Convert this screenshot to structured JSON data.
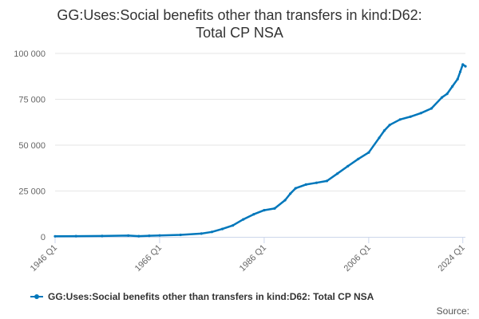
{
  "chart_data": {
    "type": "line",
    "title_lines": [
      "GG:Uses:Social benefits other than transfers in kind:D62:",
      "Total CP NSA"
    ],
    "x_tick_labels": [
      "1946 Q1",
      "1966 Q1",
      "1986 Q1",
      "2006 Q1",
      "2024 Q1"
    ],
    "x_tick_years": [
      1946,
      1966,
      1986,
      2006,
      2024
    ],
    "xlim": [
      1946,
      2024.5
    ],
    "y_tick_labels": [
      "0",
      "25 000",
      "50 000",
      "75 000",
      "100 000"
    ],
    "y_tick_values": [
      0,
      25000,
      50000,
      75000,
      100000
    ],
    "ylim": [
      0,
      100000
    ],
    "grid": true,
    "legend_position": "bottom",
    "series": [
      {
        "name": "GG:Uses:Social benefits other than transfers in kind:D62: Total CP NSA",
        "color": "#0077bb",
        "x": [
          1946,
          1950,
          1955,
          1960,
          1962,
          1964,
          1966,
          1970,
          1974,
          1976,
          1978,
          1980,
          1982,
          1984,
          1986,
          1988,
          1990,
          1991,
          1992,
          1994,
          1996,
          1998,
          2000,
          2002,
          2004,
          2006,
          2008,
          2009,
          2010,
          2012,
          2014,
          2016,
          2018,
          2020,
          2021,
          2022,
          2023,
          2023.5,
          2024,
          2024.5
        ],
        "y": [
          300,
          400,
          500,
          700,
          400,
          600,
          800,
          1100,
          1800,
          2700,
          4300,
          6200,
          9500,
          12300,
          14500,
          15500,
          20000,
          23500,
          26500,
          28500,
          29500,
          30500,
          34500,
          38500,
          42500,
          46000,
          54000,
          58000,
          61000,
          64000,
          65500,
          67500,
          70000,
          76000,
          78000,
          82000,
          86000,
          90000,
          94000,
          93000
        ]
      }
    ]
  },
  "credits": "Source:"
}
